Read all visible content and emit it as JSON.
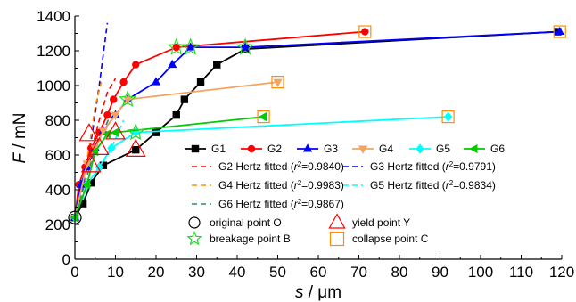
{
  "chart_data": {
    "type": "line",
    "xlabel_var": "s",
    "xlabel_unit": "μm",
    "ylabel_var": "F",
    "ylabel_unit": "mN",
    "xlim": [
      0,
      120
    ],
    "ylim": [
      0,
      1400
    ],
    "xticks": [
      0,
      10,
      20,
      30,
      40,
      50,
      60,
      70,
      80,
      90,
      100,
      110,
      120
    ],
    "yticks": [
      0,
      200,
      400,
      600,
      800,
      1000,
      1200,
      1400
    ],
    "grid": false,
    "series": [
      {
        "name": "G1",
        "color": "#000000",
        "marker": "square",
        "x": [
          0,
          2,
          4,
          7,
          15,
          20,
          25,
          27,
          31,
          35,
          42,
          119
        ],
        "y": [
          240,
          320,
          440,
          540,
          630,
          730,
          830,
          920,
          1020,
          1120,
          1210,
          1310
        ]
      },
      {
        "name": "G2",
        "color": "#ff0000",
        "marker": "circle",
        "x": [
          0,
          1,
          2.5,
          4,
          6,
          8,
          9.5,
          12,
          15,
          25,
          71.5
        ],
        "y": [
          240,
          430,
          530,
          640,
          730,
          830,
          920,
          1020,
          1120,
          1220,
          1310
        ]
      },
      {
        "name": "G3",
        "color": "#0000ff",
        "marker": "triangle-up",
        "x": [
          0,
          1.5,
          3,
          5,
          7,
          10,
          13,
          20,
          24,
          28.5,
          42,
          119.5
        ],
        "y": [
          240,
          430,
          530,
          640,
          740,
          830,
          920,
          1020,
          1120,
          1220,
          1220,
          1310
        ]
      },
      {
        "name": "G4",
        "color": "#f4a460",
        "marker": "triangle-down",
        "x": [
          0,
          3,
          5,
          7,
          10,
          13,
          50
        ],
        "y": [
          240,
          550,
          640,
          740,
          830,
          920,
          1020
        ]
      },
      {
        "name": "G5",
        "color": "#00ffff",
        "marker": "diamond",
        "x": [
          0,
          3,
          6,
          9,
          15,
          92
        ],
        "y": [
          240,
          430,
          530,
          640,
          730,
          820
        ]
      },
      {
        "name": "G6",
        "color": "#00cc00",
        "marker": "triangle-left",
        "x": [
          0,
          3,
          5,
          8,
          10,
          46.5
        ],
        "y": [
          240,
          430,
          620,
          720,
          730,
          820
        ]
      }
    ],
    "fits": [
      {
        "name": "G2 Hertz fitted",
        "r2": "0.9840",
        "color": "#ff0000",
        "x": [
          0,
          2,
          4,
          6,
          8,
          10
        ],
        "y": [
          240,
          430,
          620,
          800,
          960,
          1040
        ]
      },
      {
        "name": "G3 Hertz fitted",
        "r2": "0.9791",
        "color": "#0000ff",
        "x": [
          0,
          2,
          4,
          6,
          8
        ],
        "y": [
          240,
          430,
          680,
          1000,
          1360
        ]
      },
      {
        "name": "G4 Hertz fitted",
        "r2": "0.9983",
        "color": "#ff8c00",
        "x": [
          0,
          2,
          3.5,
          5,
          6.5
        ],
        "y": [
          240,
          450,
          640,
          880,
          1020
        ]
      },
      {
        "name": "G5 Hertz fitted",
        "r2": "0.9834",
        "color": "#00ffff",
        "x": [
          0,
          3,
          6,
          9,
          12
        ],
        "y": [
          240,
          400,
          520,
          640,
          800
        ]
      },
      {
        "name": "G6 Hertz fitted",
        "r2": "0.9867",
        "color": "#2e8b57",
        "x": [
          0,
          2,
          4,
          6,
          9
        ],
        "y": [
          240,
          400,
          560,
          690,
          840
        ]
      }
    ],
    "points": [
      {
        "name": "original point O",
        "shape": "circle",
        "color": "#000000",
        "x": [
          0
        ],
        "y": [
          240
        ]
      },
      {
        "name": "yield point Y",
        "shape": "triangle",
        "color": "#ff0000",
        "x": [
          3.5,
          4,
          6,
          10,
          15
        ],
        "y": [
          720,
          540,
          640,
          730,
          630
        ]
      },
      {
        "name": "breakage point B",
        "shape": "star",
        "color": "#22dd22",
        "x": [
          13,
          15,
          25,
          28.5,
          42
        ],
        "y": [
          920,
          730,
          1220,
          1220,
          1220
        ]
      },
      {
        "name": "collapse point C",
        "shape": "square",
        "color": "#ff8c00",
        "x": [
          46.5,
          50,
          71.5,
          92,
          119.5
        ],
        "y": [
          820,
          1020,
          1310,
          820,
          1310
        ]
      }
    ]
  }
}
